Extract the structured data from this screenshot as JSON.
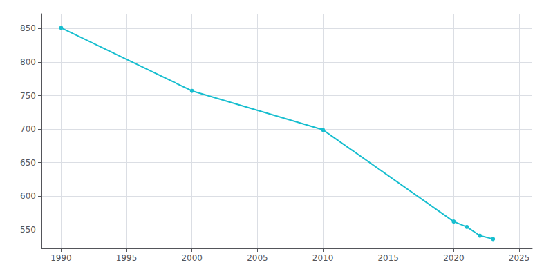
{
  "chart_data": {
    "type": "line",
    "x": [
      1990,
      2000,
      2010,
      2020,
      2021,
      2022,
      2023
    ],
    "values": [
      851,
      757,
      699,
      562,
      554,
      541,
      536
    ],
    "color": "#17BECF",
    "marker": "circle",
    "xlim": [
      1988.5,
      2026
    ],
    "ylim": [
      522,
      872
    ],
    "xticks": [
      1990,
      1995,
      2000,
      2005,
      2010,
      2015,
      2020,
      2025
    ],
    "yticks": [
      550,
      600,
      650,
      700,
      750,
      800,
      850
    ],
    "grid": true
  }
}
